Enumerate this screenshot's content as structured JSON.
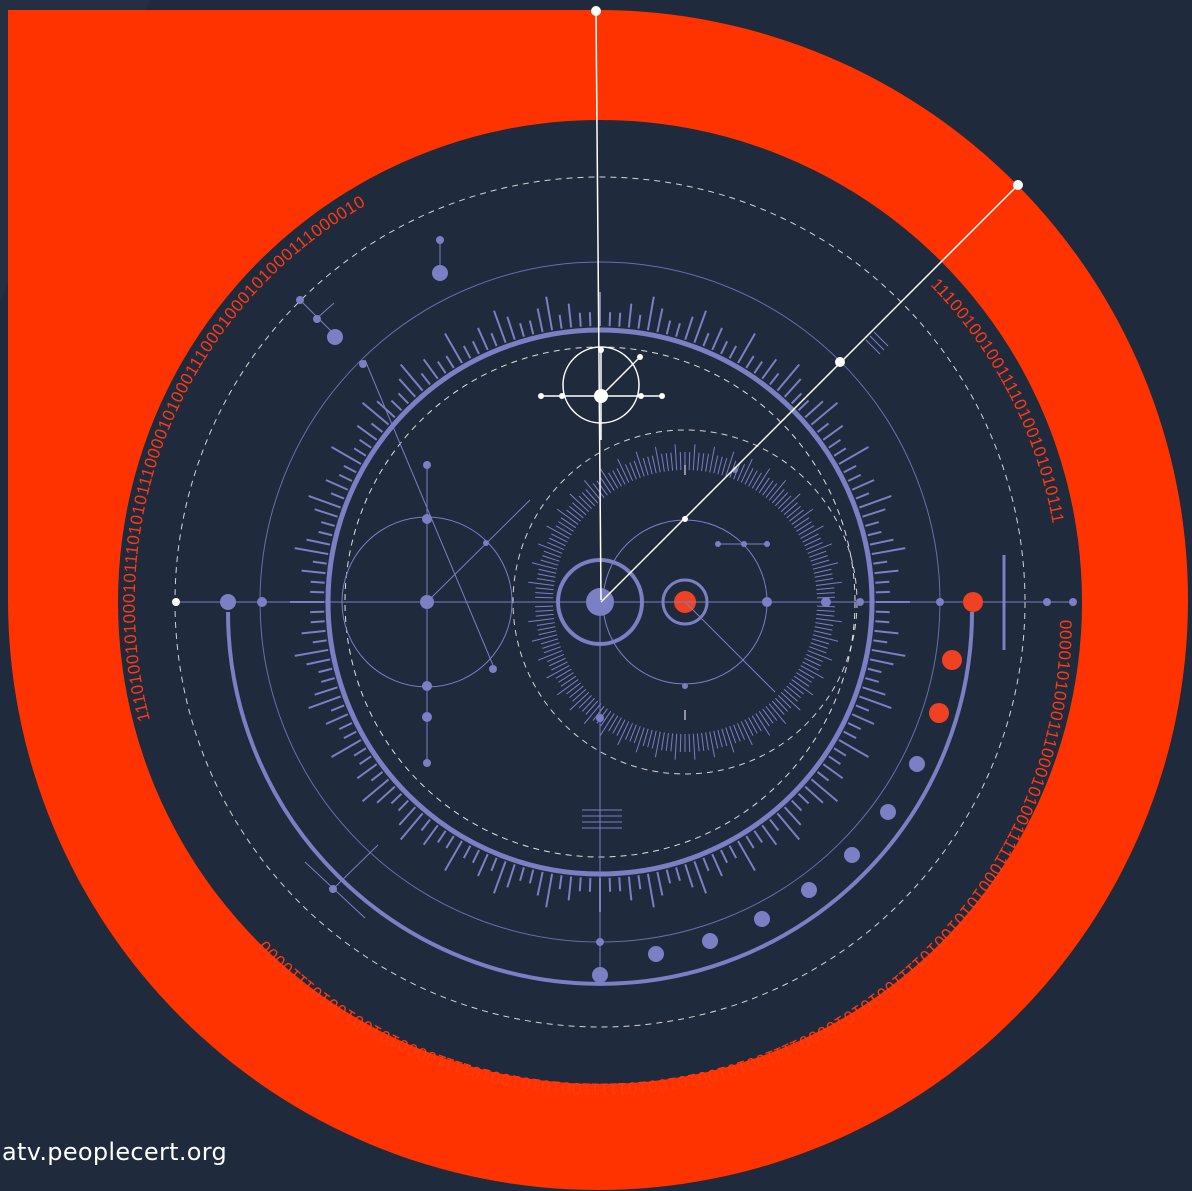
{
  "footer": {
    "url": "atv.peoplecert.org"
  },
  "binary": {
    "top_arc": "1110100101000101110101011100001010001110001000101000111000010",
    "right_arc": "1110010010011110100101010111",
    "bottom_arc": "0000101000111000101001111100010101001011110010101000011110010100101001011111001010100101111000010100100101110000"
  },
  "colors": {
    "background": "#1f2a3c",
    "orange": "#ff3300",
    "lavender": "#7b7fc4",
    "white": "#ffffff",
    "accent_red": "#f04122"
  }
}
